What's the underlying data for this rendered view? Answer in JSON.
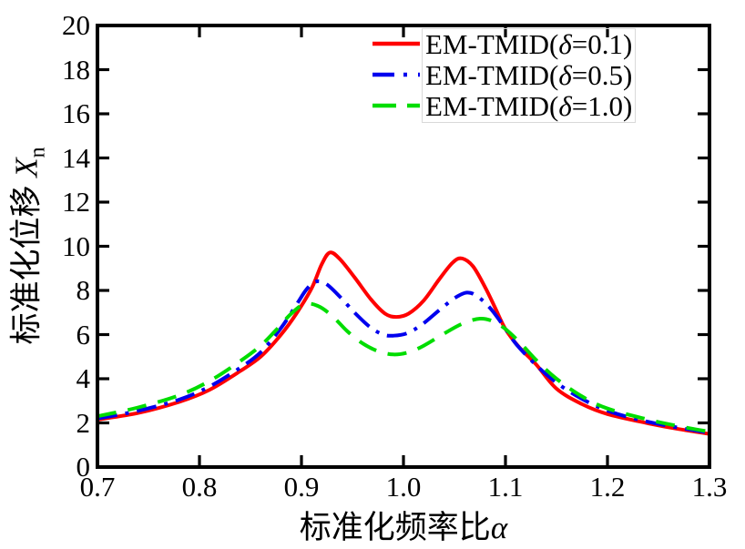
{
  "background": "#ffffff",
  "chart_data": {
    "type": "line",
    "title": "",
    "xlabel": "标准化频率比α",
    "ylabel": "标准化位移 Xn",
    "xlabel_prefix": "标准化频率比",
    "xlabel_symbol": "α",
    "ylabel_prefix": "标准化位移 ",
    "ylabel_symbol": "X",
    "ylabel_sub": "n",
    "xlim": [
      0.7,
      1.3
    ],
    "ylim": [
      0,
      20
    ],
    "grid": false,
    "legend_position": "top-center-inside",
    "frame_color": "#000000",
    "x_tick_values": [
      0.7,
      0.8,
      0.9,
      1.0,
      1.1,
      1.2,
      1.3
    ],
    "x_tick_labels": [
      "0.7",
      "0.8",
      "0.9",
      "1.0",
      "1.1",
      "1.2",
      "1.3"
    ],
    "y_tick_values": [
      0,
      2,
      4,
      6,
      8,
      10,
      12,
      14,
      16,
      18,
      20
    ],
    "y_tick_labels": [
      "0",
      "2",
      "4",
      "6",
      "8",
      "10",
      "12",
      "14",
      "16",
      "18",
      "20"
    ],
    "series": [
      {
        "name": "EM-TMID(δ=0.1)",
        "label_prefix": "EM-TMID(",
        "label_symbol": "δ",
        "label_suffix": "=0.1)",
        "color": "#ff0000",
        "style": "solid",
        "points": [
          [
            0.7,
            2.15
          ],
          [
            0.74,
            2.45
          ],
          [
            0.78,
            2.95
          ],
          [
            0.81,
            3.5
          ],
          [
            0.84,
            4.35
          ],
          [
            0.86,
            5.0
          ],
          [
            0.88,
            6.0
          ],
          [
            0.895,
            6.95
          ],
          [
            0.91,
            8.1
          ],
          [
            0.92,
            9.2
          ],
          [
            0.928,
            9.72
          ],
          [
            0.938,
            9.4
          ],
          [
            0.952,
            8.6
          ],
          [
            0.968,
            7.6
          ],
          [
            0.982,
            6.95
          ],
          [
            0.993,
            6.8
          ],
          [
            1.005,
            6.95
          ],
          [
            1.02,
            7.55
          ],
          [
            1.035,
            8.5
          ],
          [
            1.048,
            9.25
          ],
          [
            1.057,
            9.45
          ],
          [
            1.068,
            9.1
          ],
          [
            1.08,
            8.15
          ],
          [
            1.09,
            7.2
          ],
          [
            1.1,
            6.25
          ],
          [
            1.113,
            5.45
          ],
          [
            1.13,
            4.65
          ],
          [
            1.15,
            3.55
          ],
          [
            1.175,
            2.85
          ],
          [
            1.2,
            2.4
          ],
          [
            1.24,
            1.98
          ],
          [
            1.27,
            1.72
          ],
          [
            1.3,
            1.5
          ]
        ]
      },
      {
        "name": "EM-TMID(δ=0.5)",
        "label_prefix": "EM-TMID(",
        "label_symbol": "δ",
        "label_suffix": "=0.5)",
        "color": "#0000ee",
        "style": "dash-dot",
        "points": [
          [
            0.7,
            2.2
          ],
          [
            0.74,
            2.55
          ],
          [
            0.78,
            3.05
          ],
          [
            0.81,
            3.65
          ],
          [
            0.84,
            4.5
          ],
          [
            0.86,
            5.2
          ],
          [
            0.88,
            6.3
          ],
          [
            0.895,
            7.35
          ],
          [
            0.905,
            8.05
          ],
          [
            0.914,
            8.4
          ],
          [
            0.924,
            8.3
          ],
          [
            0.937,
            7.75
          ],
          [
            0.952,
            7.0
          ],
          [
            0.967,
            6.35
          ],
          [
            0.98,
            6.0
          ],
          [
            0.99,
            5.95
          ],
          [
            1.003,
            6.05
          ],
          [
            1.018,
            6.45
          ],
          [
            1.035,
            7.1
          ],
          [
            1.05,
            7.65
          ],
          [
            1.062,
            7.9
          ],
          [
            1.072,
            7.75
          ],
          [
            1.085,
            7.2
          ],
          [
            1.098,
            6.4
          ],
          [
            1.11,
            5.6
          ],
          [
            1.125,
            4.85
          ],
          [
            1.14,
            4.2
          ],
          [
            1.16,
            3.5
          ],
          [
            1.185,
            2.85
          ],
          [
            1.21,
            2.4
          ],
          [
            1.25,
            1.95
          ],
          [
            1.3,
            1.55
          ]
        ]
      },
      {
        "name": "EM-TMID(δ=1.0)",
        "label_prefix": "EM-TMID(",
        "label_symbol": "δ",
        "label_suffix": "=1.0)",
        "color": "#00dd00",
        "style": "dashed",
        "points": [
          [
            0.7,
            2.3
          ],
          [
            0.74,
            2.7
          ],
          [
            0.78,
            3.25
          ],
          [
            0.81,
            3.9
          ],
          [
            0.84,
            4.8
          ],
          [
            0.86,
            5.5
          ],
          [
            0.875,
            6.2
          ],
          [
            0.89,
            6.95
          ],
          [
            0.903,
            7.38
          ],
          [
            0.916,
            7.3
          ],
          [
            0.93,
            6.85
          ],
          [
            0.945,
            6.15
          ],
          [
            0.96,
            5.6
          ],
          [
            0.975,
            5.25
          ],
          [
            0.99,
            5.1
          ],
          [
            1.005,
            5.2
          ],
          [
            1.02,
            5.5
          ],
          [
            1.04,
            6.05
          ],
          [
            1.058,
            6.5
          ],
          [
            1.075,
            6.72
          ],
          [
            1.088,
            6.6
          ],
          [
            1.1,
            6.25
          ],
          [
            1.115,
            5.6
          ],
          [
            1.13,
            4.85
          ],
          [
            1.15,
            4.0
          ],
          [
            1.175,
            3.2
          ],
          [
            1.2,
            2.65
          ],
          [
            1.24,
            2.15
          ],
          [
            1.27,
            1.85
          ],
          [
            1.3,
            1.6
          ]
        ]
      }
    ]
  }
}
